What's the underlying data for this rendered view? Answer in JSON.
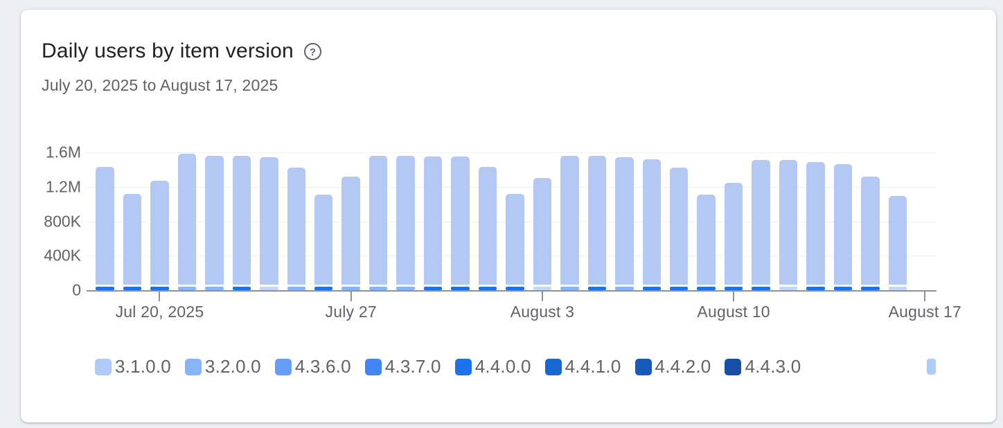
{
  "page": {
    "title": "Daily users by item version",
    "date_range": "July 20, 2025 to August 17, 2025",
    "help_icon": "circled-question-mark"
  },
  "chart_data": {
    "type": "bar",
    "stacked": true,
    "title": "Daily users by item version",
    "subtitle": "July 20, 2025 to August 17, 2025",
    "grid": true,
    "legend_position": "bottom",
    "y_axis": {
      "min": 0,
      "max": 1600000,
      "ticks": [
        {
          "label": "0",
          "value": 0
        },
        {
          "label": "400K",
          "value": 400000
        },
        {
          "label": "800K",
          "value": 800000
        },
        {
          "label": "1.2M",
          "value": 1200000
        },
        {
          "label": "1.6M",
          "value": 1600000
        }
      ]
    },
    "x_axis": {
      "ticks": [
        {
          "label": "Jul 20, 2025",
          "day": 2
        },
        {
          "label": "July 27",
          "day": 9
        },
        {
          "label": "August 3",
          "day": 16
        },
        {
          "label": "August 10",
          "day": 23
        },
        {
          "label": "August 17",
          "day": 30
        }
      ]
    },
    "legend": {
      "items": [
        {
          "label": "3.1.0.0",
          "color": "#aecbfa"
        },
        {
          "label": "3.2.0.0",
          "color": "#8ab4f8"
        },
        {
          "label": "4.3.6.0",
          "color": "#669df6"
        },
        {
          "label": "4.3.7.0",
          "color": "#4285f4"
        },
        {
          "label": "4.4.0.0",
          "color": "#1a73e8"
        },
        {
          "label": "4.4.1.0",
          "color": "#1967d2"
        },
        {
          "label": "4.4.2.0",
          "color": "#185abc"
        },
        {
          "label": "4.4.3.0",
          "color": "#174ea6"
        },
        {
          "label": "",
          "color": "#aecbfa",
          "clipped": true
        }
      ]
    },
    "body_color": "#b3c8f2",
    "accent_colors": {
      "royal": "#1a73e8",
      "light": "#8ab4f8",
      "pale": "#c3d6f8"
    },
    "bars": [
      {
        "date": "Jul 18",
        "total": 1430000,
        "accent": "royal"
      },
      {
        "date": "Jul 19",
        "total": 1120000,
        "accent": "royal"
      },
      {
        "date": "Jul 20",
        "total": 1270000,
        "accent": "royal"
      },
      {
        "date": "Jul 21",
        "total": 1580000,
        "accent": "light"
      },
      {
        "date": "Jul 22",
        "total": 1560000,
        "accent": "light"
      },
      {
        "date": "Jul 23",
        "total": 1560000,
        "accent": "royal"
      },
      {
        "date": "Jul 24",
        "total": 1540000,
        "accent": "pale"
      },
      {
        "date": "Jul 25",
        "total": 1420000,
        "accent": "light"
      },
      {
        "date": "Jul 26",
        "total": 1110000,
        "accent": "royal"
      },
      {
        "date": "Jul 27",
        "total": 1320000,
        "accent": "light"
      },
      {
        "date": "Jul 28",
        "total": 1560000,
        "accent": "light"
      },
      {
        "date": "Jul 29",
        "total": 1560000,
        "accent": "light"
      },
      {
        "date": "Jul 30",
        "total": 1550000,
        "accent": "royal"
      },
      {
        "date": "Jul 31",
        "total": 1550000,
        "accent": "royal"
      },
      {
        "date": "Aug 1",
        "total": 1430000,
        "accent": "royal"
      },
      {
        "date": "Aug 2",
        "total": 1120000,
        "accent": "royal"
      },
      {
        "date": "Aug 3",
        "total": 1300000,
        "accent": "pale"
      },
      {
        "date": "Aug 4",
        "total": 1560000,
        "accent": "light"
      },
      {
        "date": "Aug 5",
        "total": 1560000,
        "accent": "royal"
      },
      {
        "date": "Aug 6",
        "total": 1540000,
        "accent": "light"
      },
      {
        "date": "Aug 7",
        "total": 1520000,
        "accent": "royal"
      },
      {
        "date": "Aug 8",
        "total": 1420000,
        "accent": "royal"
      },
      {
        "date": "Aug 9",
        "total": 1110000,
        "accent": "royal"
      },
      {
        "date": "Aug 10",
        "total": 1250000,
        "accent": "royal"
      },
      {
        "date": "Aug 11",
        "total": 1510000,
        "accent": "royal"
      },
      {
        "date": "Aug 12",
        "total": 1510000,
        "accent": "pale"
      },
      {
        "date": "Aug 13",
        "total": 1490000,
        "accent": "royal"
      },
      {
        "date": "Aug 14",
        "total": 1460000,
        "accent": "royal"
      },
      {
        "date": "Aug 15",
        "total": 1320000,
        "accent": "royal"
      },
      {
        "date": "Aug 16",
        "total": 1090000,
        "accent": "pale"
      }
    ]
  }
}
